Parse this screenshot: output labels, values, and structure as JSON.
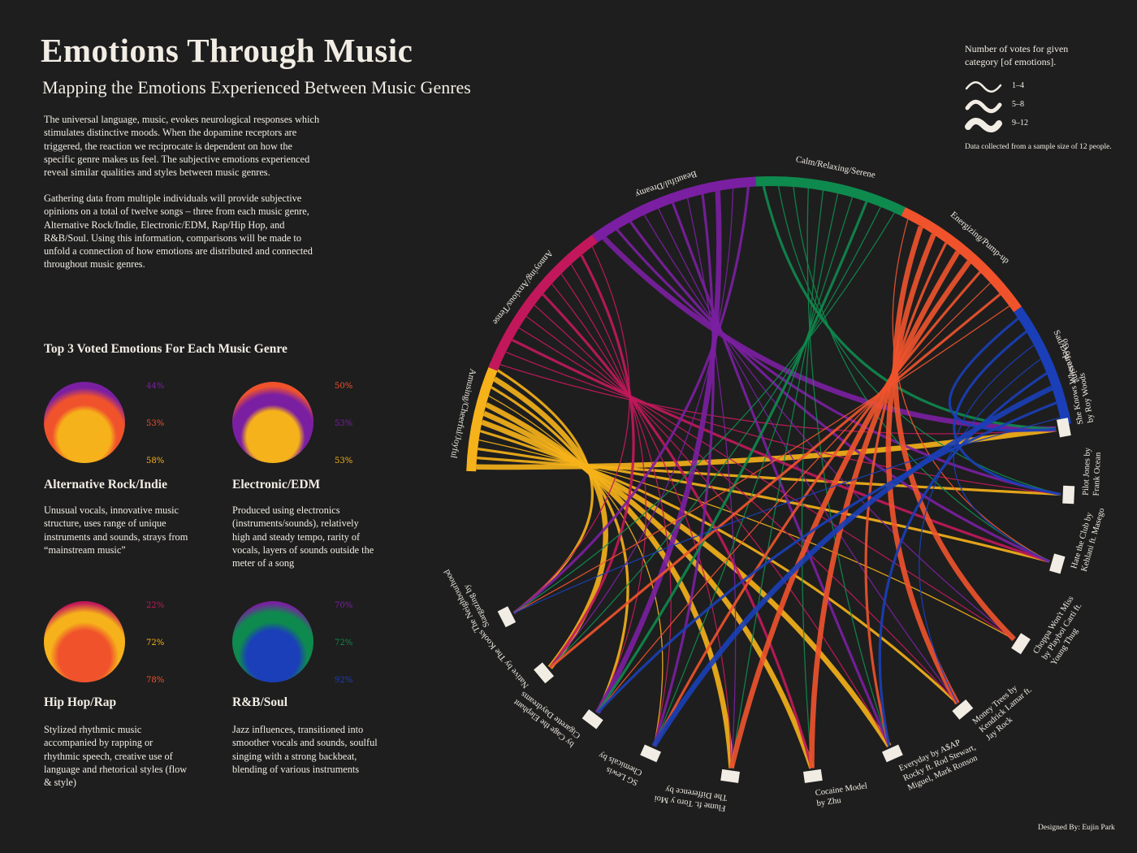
{
  "title": "Emotions Through Music",
  "subtitle": "Mapping the Emotions Experienced Between Music Genres",
  "intro": [
    "The universal language, music, evokes neurological responses which stimulates distinctive moods. When the dopamine receptors are triggered, the reaction we reciprocate is dependent on how the specific genre makes us feel. The subjective emotions experienced reveal similar qualities and styles between music genres.",
    "Gathering data from multiple individuals will provide subjective opinions on a total of twelve songs – three from each music genre, Alternative Rock/Indie, Electronic/EDM, Rap/Hip Hop, and R&B/Soul. Using this information, comparisons will be made to unfold a connection of how emotions are distributed and connected throughout music genres."
  ],
  "top3_heading": "Top 3 Voted Emotions For Each Music Genre",
  "genres": [
    {
      "name": "Alternative Rock/Indie",
      "description": "Unusual vocals, innovative music structure, uses range of unique instruments and sounds, strays from “mainstream music”",
      "top3": [
        {
          "pct": "44%",
          "color": "#7b1fa2"
        },
        {
          "pct": "53%",
          "color": "#f0532c"
        },
        {
          "pct": "58%",
          "color": "#f6b21a"
        }
      ]
    },
    {
      "name": "Electronic/EDM",
      "description": "Produced using electronics (instruments/sounds), relatively high and steady tempo, rarity of vocals, layers of sounds outside the meter of a song",
      "top3": [
        {
          "pct": "50%",
          "color": "#f0532c"
        },
        {
          "pct": "53%",
          "color": "#7b1fa2"
        },
        {
          "pct": "53%",
          "color": "#f6b21a"
        }
      ]
    },
    {
      "name": "Hip Hop/Rap",
      "description": "Stylized rhythmic music accompanied by rapping or rhythmic speech, creative use of language and rhetorical styles (flow & style)",
      "top3": [
        {
          "pct": "22%",
          "color": "#c2185b"
        },
        {
          "pct": "72%",
          "color": "#f6b21a"
        },
        {
          "pct": "78%",
          "color": "#f0532c"
        }
      ]
    },
    {
      "name": "R&B/Soul",
      "description": "Jazz influences, transitioned into smoother vocals and sounds, soulful singing with a strong backbeat, blending of various instruments",
      "top3": [
        {
          "pct": "70%",
          "color": "#7b1fa2"
        },
        {
          "pct": "72%",
          "color": "#0e8a4e"
        },
        {
          "pct": "92%",
          "color": "#1a3fb8"
        }
      ]
    }
  ],
  "legend": {
    "title": "Number of votes for given category [of emotions].",
    "items": [
      {
        "label": "1–4",
        "weight": 1
      },
      {
        "label": "5–8",
        "weight": 2
      },
      {
        "label": "9–12",
        "weight": 3
      }
    ],
    "note": "Data collected from a sample size of 12 people."
  },
  "emotions": [
    {
      "label": "Amusing/Cheerful/Joyful",
      "color": "#f6b21a"
    },
    {
      "label": "Annoying/Anxious/Tense",
      "color": "#c2185b"
    },
    {
      "label": "Beautiful/Dreamy",
      "color": "#7b1fa2"
    },
    {
      "label": "Calm/Relaxing/Serene",
      "color": "#0e8a4e"
    },
    {
      "label": "Energizing/Pump-up",
      "color": "#f0532c"
    },
    {
      "label": "Sad/Depressing",
      "color": "#1a3fb8"
    }
  ],
  "songs": [
    {
      "lines": [
        "She Knows Where To Go",
        "by Roy Woods"
      ]
    },
    {
      "lines": [
        "Pilot Jones by",
        "Frank Ocean"
      ]
    },
    {
      "lines": [
        "Hate the Club by",
        "Kehlani ft. Masego"
      ]
    },
    {
      "lines": [
        "Choppa Won't Miss",
        "by Playboi Carti ft.",
        "Young Thug"
      ]
    },
    {
      "lines": [
        "Money Trees by",
        "Kendrick Lamar ft.",
        "Jay Rock"
      ]
    },
    {
      "lines": [
        "Everyday by A$AP",
        "Rocky ft. Rod Stewart,",
        "Miguel, Mark Ronson"
      ]
    },
    {
      "lines": [
        "Cocaine Model",
        "by Zhu"
      ]
    },
    {
      "lines": [
        "The Difference by",
        "Flume ft. Toro y Moi"
      ]
    },
    {
      "lines": [
        "Chemicals by",
        "SG Lewis"
      ]
    },
    {
      "lines": [
        "Cigarette Daydreams",
        "by Cage the Elephant"
      ]
    },
    {
      "lines": [
        "Native by The Kooks"
      ]
    },
    {
      "lines": [
        "Stargazing by",
        "The Neighbourhood"
      ]
    }
  ],
  "links": [
    [
      0,
      0,
      3
    ],
    [
      0,
      1,
      2
    ],
    [
      0,
      2,
      2
    ],
    [
      0,
      3,
      1
    ],
    [
      0,
      4,
      2
    ],
    [
      0,
      5,
      3
    ],
    [
      0,
      6,
      3
    ],
    [
      0,
      7,
      3
    ],
    [
      0,
      8,
      1
    ],
    [
      0,
      9,
      2
    ],
    [
      0,
      10,
      3
    ],
    [
      0,
      11,
      2
    ],
    [
      1,
      0,
      1
    ],
    [
      1,
      1,
      1
    ],
    [
      1,
      2,
      2
    ],
    [
      1,
      3,
      1
    ],
    [
      1,
      4,
      1
    ],
    [
      1,
      5,
      1
    ],
    [
      1,
      6,
      2
    ],
    [
      1,
      7,
      1
    ],
    [
      1,
      8,
      1
    ],
    [
      1,
      9,
      1
    ],
    [
      1,
      10,
      2
    ],
    [
      1,
      11,
      1
    ],
    [
      2,
      0,
      3
    ],
    [
      2,
      1,
      2
    ],
    [
      2,
      2,
      2
    ],
    [
      2,
      3,
      1
    ],
    [
      2,
      4,
      1
    ],
    [
      2,
      5,
      2
    ],
    [
      2,
      7,
      1
    ],
    [
      2,
      8,
      2
    ],
    [
      2,
      9,
      3
    ],
    [
      2,
      10,
      1
    ],
    [
      2,
      11,
      2
    ],
    [
      3,
      0,
      2
    ],
    [
      3,
      1,
      1
    ],
    [
      3,
      2,
      1
    ],
    [
      3,
      5,
      1
    ],
    [
      3,
      6,
      1
    ],
    [
      3,
      7,
      1
    ],
    [
      3,
      8,
      1
    ],
    [
      3,
      9,
      2
    ],
    [
      3,
      10,
      1
    ],
    [
      3,
      11,
      1
    ],
    [
      4,
      2,
      1
    ],
    [
      4,
      3,
      3
    ],
    [
      4,
      4,
      3
    ],
    [
      4,
      5,
      2
    ],
    [
      4,
      6,
      3
    ],
    [
      4,
      7,
      3
    ],
    [
      4,
      8,
      2
    ],
    [
      4,
      9,
      1
    ],
    [
      4,
      10,
      2
    ],
    [
      4,
      11,
      1
    ],
    [
      5,
      0,
      2
    ],
    [
      5,
      1,
      2
    ],
    [
      5,
      2,
      1
    ],
    [
      5,
      4,
      1
    ],
    [
      5,
      5,
      2
    ],
    [
      5,
      8,
      3
    ],
    [
      5,
      9,
      2
    ],
    [
      5,
      11,
      1
    ]
  ],
  "credit": "Designed By: Eujin Park"
}
